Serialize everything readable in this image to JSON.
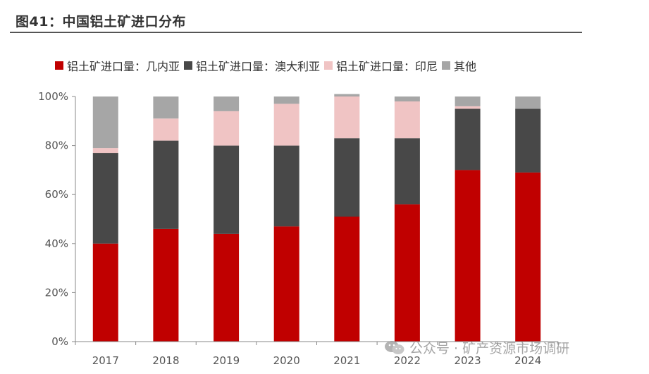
{
  "figure": {
    "title": "图41：中国铝土矿进口分布"
  },
  "watermark": {
    "icon": "wechat-icon",
    "text": "公众号 · 矿产资源市场调研"
  },
  "colors": {
    "guinea": "#c00000",
    "australia": "#484848",
    "indonesia": "#f0c4c4",
    "other": "#a6a6a6"
  },
  "chart_data": {
    "type": "bar",
    "stacked": true,
    "title": "",
    "xlabel": "",
    "ylabel": "",
    "ylim": [
      0,
      100
    ],
    "y_tick_format": "percent",
    "y_ticks": [
      "0%",
      "20%",
      "40%",
      "60%",
      "80%",
      "100%"
    ],
    "grid": false,
    "legend_position": "top",
    "categories": [
      "2017",
      "2018",
      "2019",
      "2020",
      "2021",
      "2022",
      "2023",
      "2024"
    ],
    "series": [
      {
        "name": "铝土矿进口量：几内亚",
        "color": "#c00000",
        "values": [
          40,
          46,
          44,
          47,
          51,
          56,
          70,
          69
        ]
      },
      {
        "name": "铝土矿进口量：澳大利亚",
        "color": "#484848",
        "values": [
          37,
          36,
          36,
          33,
          32,
          27,
          25,
          26
        ]
      },
      {
        "name": "铝土矿进口量：印尼",
        "color": "#f0c4c4",
        "values": [
          2,
          9,
          14,
          17,
          17,
          15,
          1,
          0
        ]
      },
      {
        "name": "其他",
        "color": "#a6a6a6",
        "values": [
          21,
          9,
          6,
          3,
          1,
          2,
          4,
          5
        ]
      }
    ]
  }
}
